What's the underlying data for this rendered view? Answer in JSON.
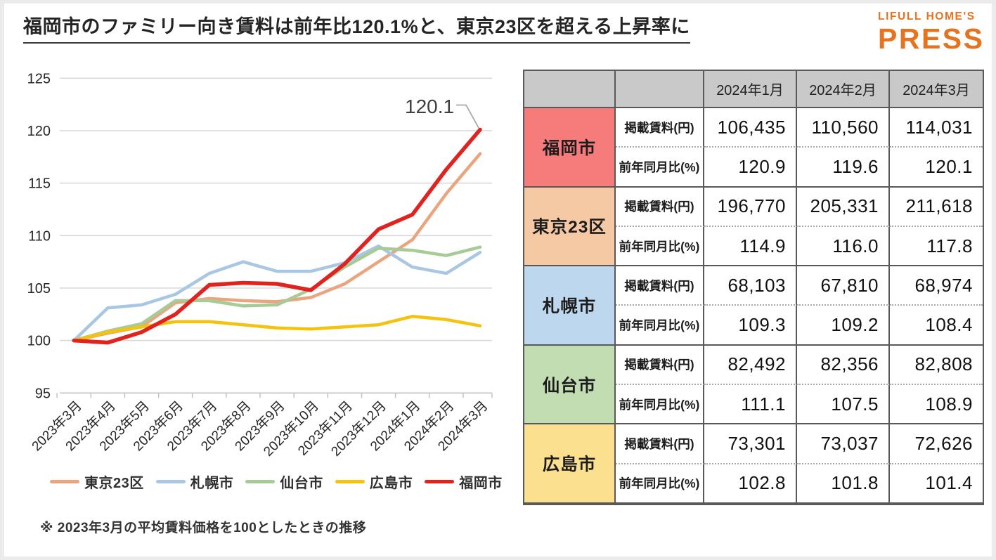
{
  "header": {
    "title": "福岡市のファミリー向き賃料は前年比120.1%と、東京23区を超える上昇率に",
    "logo": {
      "top": "LIFULL HOME'S",
      "bottom": "PRESS",
      "color": "#e5731f"
    }
  },
  "chart_data": {
    "type": "line",
    "title": "",
    "xlabel": "",
    "ylabel": "",
    "ylim": [
      95,
      125
    ],
    "yticks": [
      95,
      100,
      105,
      110,
      115,
      120,
      125
    ],
    "grid": true,
    "legend_position": "bottom",
    "x": [
      "2023年3月",
      "2023年4月",
      "2023年5月",
      "2023年6月",
      "2023年7月",
      "2023年8月",
      "2023年9月",
      "2023年10月",
      "2023年11月",
      "2023年12月",
      "2024年1月",
      "2024年2月",
      "2024年3月"
    ],
    "series": [
      {
        "id": "tokyo23",
        "name": "東京23区",
        "color": "#EAA57F",
        "emphasis": false,
        "values": [
          100,
          100.7,
          101.3,
          103.6,
          104.0,
          103.8,
          103.7,
          104.1,
          105.4,
          107.5,
          109.6,
          114.0,
          117.8
        ]
      },
      {
        "id": "sapporo",
        "name": "札幌市",
        "color": "#A9C6E2",
        "emphasis": false,
        "values": [
          100,
          103.1,
          103.4,
          104.4,
          106.4,
          107.5,
          106.6,
          106.6,
          107.4,
          109.0,
          107.0,
          106.4,
          108.4
        ]
      },
      {
        "id": "sendai",
        "name": "仙台市",
        "color": "#A6CB97",
        "emphasis": false,
        "values": [
          100,
          100.9,
          101.6,
          103.8,
          103.8,
          103.3,
          103.4,
          104.9,
          107.0,
          108.8,
          108.6,
          108.1,
          108.9
        ]
      },
      {
        "id": "hiroshima",
        "name": "広島市",
        "color": "#F3C30F",
        "emphasis": false,
        "values": [
          100,
          100.8,
          101.3,
          101.8,
          101.8,
          101.5,
          101.2,
          101.1,
          101.3,
          101.5,
          102.3,
          102.0,
          101.4
        ]
      },
      {
        "id": "fukuoka",
        "name": "福岡市",
        "color": "#E0231E",
        "emphasis": true,
        "values": [
          100,
          99.8,
          100.8,
          102.5,
          105.3,
          105.5,
          105.4,
          104.8,
          107.3,
          110.6,
          112.0,
          116.3,
          120.1
        ]
      }
    ],
    "annotation": {
      "text": "120.1",
      "series": "福岡市",
      "point": "2024年3月",
      "value": 120.1
    }
  },
  "note": "※ 2023年3月の平均賃料価格を100としたときの推移",
  "table": {
    "months": [
      "2024年1月",
      "2024年2月",
      "2024年3月"
    ],
    "metric_labels": [
      "掲載賃料(円)",
      "前年同月比(%)"
    ],
    "rows": [
      {
        "id": "fukuoka",
        "city": "福岡市",
        "color": "#F67C7C",
        "rent": [
          "106,435",
          "110,560",
          "114,031"
        ],
        "yoy": [
          "120.9",
          "119.6",
          "120.1"
        ]
      },
      {
        "id": "tokyo23",
        "city": "東京23区",
        "color": "#F5C9A3",
        "rent": [
          "196,770",
          "205,331",
          "211,618"
        ],
        "yoy": [
          "114.9",
          "116.0",
          "117.8"
        ]
      },
      {
        "id": "sapporo",
        "city": "札幌市",
        "color": "#BDD7EE",
        "rent": [
          "68,103",
          "67,810",
          "68,974"
        ],
        "yoy": [
          "109.3",
          "109.2",
          "108.4"
        ]
      },
      {
        "id": "sendai",
        "city": "仙台市",
        "color": "#C3DDB2",
        "rent": [
          "82,492",
          "82,356",
          "82,808"
        ],
        "yoy": [
          "111.1",
          "107.5",
          "108.9"
        ]
      },
      {
        "id": "hiroshima",
        "city": "広島市",
        "color": "#FBE08F",
        "rent": [
          "73,301",
          "73,037",
          "72,626"
        ],
        "yoy": [
          "102.8",
          "101.8",
          "101.4"
        ]
      }
    ]
  }
}
